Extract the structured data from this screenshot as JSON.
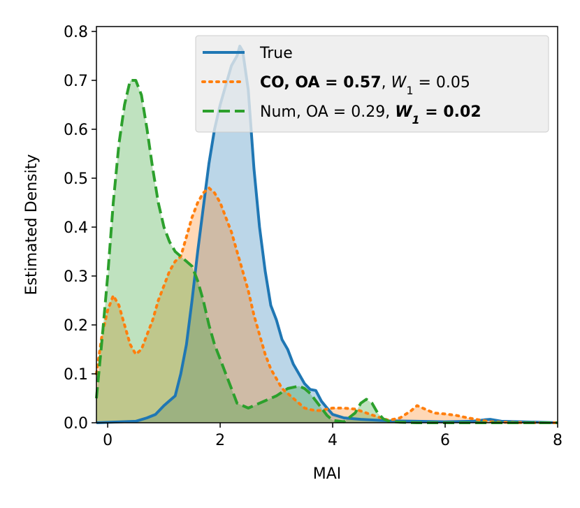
{
  "chart_data": {
    "type": "area",
    "xlabel": "MAI",
    "ylabel": "Estimated Density",
    "xlim": [
      -0.2,
      8
    ],
    "ylim": [
      0,
      0.81
    ],
    "xticks": [
      "0",
      "2",
      "4",
      "6",
      "8"
    ],
    "yticks": [
      "0.0",
      "0.1",
      "0.2",
      "0.3",
      "0.4",
      "0.5",
      "0.6",
      "0.7",
      "0.8"
    ],
    "grid": false,
    "legend_position": "top-right",
    "series": [
      {
        "name": "True",
        "color": "#1f77b4",
        "linestyle": "solid",
        "label_parts": [
          {
            "text": "True",
            "bold": false,
            "italic": false,
            "sub": false
          }
        ],
        "x": [
          -0.2,
          0.5,
          0.7,
          0.85,
          1.0,
          1.1,
          1.2,
          1.3,
          1.4,
          1.5,
          1.6,
          1.7,
          1.8,
          1.9,
          2.0,
          2.1,
          2.2,
          2.3,
          2.35,
          2.4,
          2.5,
          2.6,
          2.7,
          2.8,
          2.9,
          3.0,
          3.1,
          3.2,
          3.3,
          3.4,
          3.5,
          3.6,
          3.7,
          3.8,
          3.9,
          4.0,
          4.2,
          4.5,
          5.0,
          5.5,
          6.0,
          6.5,
          6.7,
          6.8,
          7.0,
          8.0
        ],
        "y": [
          0.0,
          0.003,
          0.01,
          0.017,
          0.035,
          0.045,
          0.055,
          0.1,
          0.16,
          0.25,
          0.35,
          0.44,
          0.53,
          0.6,
          0.65,
          0.69,
          0.73,
          0.75,
          0.77,
          0.76,
          0.68,
          0.52,
          0.4,
          0.31,
          0.24,
          0.21,
          0.17,
          0.15,
          0.12,
          0.1,
          0.08,
          0.068,
          0.066,
          0.044,
          0.03,
          0.017,
          0.01,
          0.007,
          0.004,
          0.003,
          0.002,
          0.003,
          0.006,
          0.007,
          0.003,
          0.0
        ]
      },
      {
        "name": "CO",
        "color": "#ff7f0e",
        "linestyle": "dotted",
        "label_parts": [
          {
            "text": "CO, OA = 0.57",
            "bold": true,
            "italic": false,
            "sub": false
          },
          {
            "text": ", ",
            "bold": false,
            "italic": false,
            "sub": false
          },
          {
            "text": "W",
            "bold": false,
            "italic": true,
            "sub": false
          },
          {
            "text": "1",
            "bold": false,
            "italic": false,
            "sub": true
          },
          {
            "text": " = 0.05",
            "bold": false,
            "italic": false,
            "sub": false
          }
        ],
        "x": [
          -0.2,
          -0.1,
          0.0,
          0.1,
          0.2,
          0.3,
          0.4,
          0.5,
          0.6,
          0.7,
          0.8,
          0.9,
          1.0,
          1.1,
          1.2,
          1.3,
          1.4,
          1.5,
          1.6,
          1.7,
          1.8,
          1.9,
          2.0,
          2.1,
          2.2,
          2.3,
          2.4,
          2.5,
          2.6,
          2.7,
          2.8,
          2.9,
          3.0,
          3.1,
          3.2,
          3.3,
          3.4,
          3.5,
          3.6,
          3.7,
          3.8,
          3.9,
          4.0,
          4.2,
          4.4,
          4.6,
          4.8,
          5.0,
          5.2,
          5.4,
          5.5,
          5.6,
          5.8,
          6.0,
          6.2,
          6.4,
          6.6,
          6.8,
          7.0,
          7.5,
          8.0
        ],
        "y": [
          0.1,
          0.18,
          0.23,
          0.26,
          0.24,
          0.2,
          0.16,
          0.14,
          0.15,
          0.18,
          0.21,
          0.25,
          0.28,
          0.31,
          0.33,
          0.34,
          0.38,
          0.42,
          0.45,
          0.47,
          0.48,
          0.47,
          0.45,
          0.42,
          0.39,
          0.35,
          0.31,
          0.27,
          0.22,
          0.18,
          0.14,
          0.11,
          0.09,
          0.07,
          0.06,
          0.05,
          0.04,
          0.03,
          0.027,
          0.025,
          0.025,
          0.028,
          0.03,
          0.03,
          0.028,
          0.02,
          0.012,
          0.005,
          0.01,
          0.025,
          0.035,
          0.03,
          0.02,
          0.018,
          0.015,
          0.01,
          0.006,
          0.002,
          0.001,
          0.0,
          0.0
        ]
      },
      {
        "name": "Num",
        "color": "#2ca02c",
        "linestyle": "dashed",
        "label_parts": [
          {
            "text": "Num, OA = 0.29, ",
            "bold": false,
            "italic": false,
            "sub": false
          },
          {
            "text": "W",
            "bold": true,
            "italic": true,
            "sub": false
          },
          {
            "text": "1",
            "bold": true,
            "italic": true,
            "sub": true
          },
          {
            "text": " = 0.02",
            "bold": true,
            "italic": false,
            "sub": false
          }
        ],
        "x": [
          -0.2,
          -0.1,
          0.0,
          0.1,
          0.2,
          0.3,
          0.4,
          0.5,
          0.6,
          0.7,
          0.8,
          0.9,
          1.0,
          1.1,
          1.2,
          1.3,
          1.4,
          1.5,
          1.6,
          1.7,
          1.8,
          1.9,
          2.0,
          2.1,
          2.2,
          2.3,
          2.4,
          2.5,
          2.6,
          2.8,
          3.0,
          3.2,
          3.4,
          3.5,
          3.6,
          3.7,
          3.8,
          3.9,
          4.0,
          4.2,
          4.4,
          4.5,
          4.6,
          4.7,
          4.8,
          4.9,
          5.0,
          5.2,
          5.5,
          6.0,
          8.0
        ],
        "y": [
          0.05,
          0.17,
          0.3,
          0.45,
          0.57,
          0.65,
          0.7,
          0.7,
          0.67,
          0.6,
          0.52,
          0.45,
          0.4,
          0.37,
          0.35,
          0.34,
          0.33,
          0.32,
          0.29,
          0.25,
          0.2,
          0.16,
          0.13,
          0.1,
          0.07,
          0.04,
          0.035,
          0.03,
          0.035,
          0.045,
          0.055,
          0.07,
          0.075,
          0.07,
          0.06,
          0.045,
          0.03,
          0.015,
          0.005,
          0.002,
          0.02,
          0.04,
          0.048,
          0.04,
          0.02,
          0.008,
          0.003,
          0.001,
          0.0,
          0.0,
          0.0
        ]
      }
    ]
  }
}
